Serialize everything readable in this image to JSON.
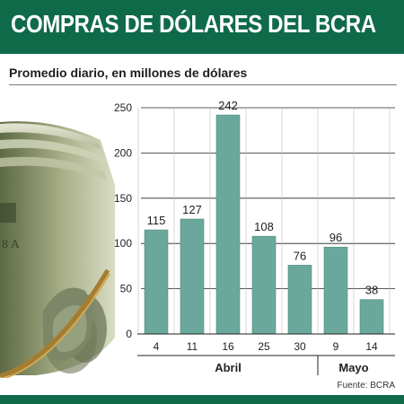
{
  "header": {
    "title": "COMPRAS DE DÓLARES DEL BCRA"
  },
  "subtitle": "Promedio diario, en millones de dólares",
  "source": "Fuente: BCRA",
  "colors": {
    "header_bg": "#0f6a4a",
    "bar": "#6aa89c",
    "bar_stroke": "#4f8b80",
    "grid": "#222222"
  },
  "chart_data": {
    "type": "bar",
    "categories": [
      "4",
      "11",
      "16",
      "25",
      "30",
      "9",
      "14"
    ],
    "values": [
      115,
      127,
      242,
      108,
      76,
      96,
      38
    ],
    "groups": [
      {
        "label": "Abril",
        "categories": [
          "4",
          "11",
          "16",
          "25",
          "30"
        ]
      },
      {
        "label": "Mayo",
        "categories": [
          "9",
          "14"
        ]
      }
    ],
    "yticks": [
      0,
      50,
      100,
      150,
      200,
      250
    ],
    "ylim": [
      0,
      250
    ],
    "grid": true,
    "data_labels": true
  }
}
